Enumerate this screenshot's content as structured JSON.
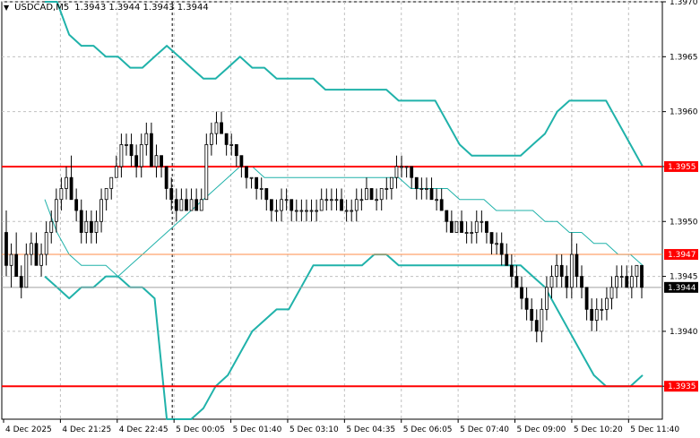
{
  "header": {
    "symbol": "USDCAD,M5",
    "ohlc": "1.3943 1.3944 1.3943 1.3944"
  },
  "colors": {
    "background": "#ffffff",
    "grid": "#c0c0c0",
    "candle": "#000000",
    "bands": "#20b2aa",
    "level_line": "#ff0000",
    "pivot_line": "#ff8c4a",
    "level_tag": "#ff0000",
    "current_tag": "#000000"
  },
  "icons": {
    "dropdown": "triangle-down-icon"
  },
  "chart_data": {
    "type": "candlestick",
    "price_scale": {
      "min": 1.3932,
      "max": 1.397,
      "ticks": [
        "1.3970",
        "1.3965",
        "1.3960",
        "1.3955",
        "1.3950",
        "1.3945",
        "1.3940",
        "1.3935"
      ]
    },
    "time_labels": [
      "4 Dec 2025",
      "4 Dec 21:25",
      "4 Dec 22:45",
      "5 Dec 00:05",
      "5 Dec 01:40",
      "5 Dec 03:10",
      "5 Dec 04:35",
      "5 Dec 06:05",
      "5 Dec 07:40",
      "5 Dec 09:00",
      "5 Dec 10:20",
      "5 Dec 11:40"
    ],
    "horizontal_levels": [
      {
        "price": 1.3955,
        "label": "1.3955",
        "kind": "resistance"
      },
      {
        "price": 1.3947,
        "label": "1.3947",
        "kind": "pivot"
      },
      {
        "price": 1.3935,
        "label": "1.3935",
        "kind": "support"
      }
    ],
    "current_price": {
      "price": 1.3944,
      "label": "1.3944"
    },
    "bars": [
      [
        1.3949,
        1.3951,
        1.3945,
        1.3946
      ],
      [
        1.3946,
        1.3948,
        1.3944,
        1.3947
      ],
      [
        1.3947,
        1.3949,
        1.3945,
        1.3945
      ],
      [
        1.3945,
        1.3946,
        1.3943,
        1.3944
      ],
      [
        1.3944,
        1.3948,
        1.3944,
        1.3947
      ],
      [
        1.3947,
        1.3949,
        1.3946,
        1.3948
      ],
      [
        1.3948,
        1.3949,
        1.3946,
        1.3946
      ],
      [
        1.3946,
        1.3948,
        1.3945,
        1.3947
      ],
      [
        1.3947,
        1.395,
        1.3946,
        1.3949
      ],
      [
        1.3949,
        1.3951,
        1.3948,
        1.395
      ],
      [
        1.395,
        1.3953,
        1.3949,
        1.3952
      ],
      [
        1.3952,
        1.3954,
        1.3951,
        1.3953
      ],
      [
        1.3953,
        1.3955,
        1.3952,
        1.3954
      ],
      [
        1.3954,
        1.3956,
        1.3953,
        1.3952
      ],
      [
        1.3952,
        1.3953,
        1.395,
        1.3951
      ],
      [
        1.3951,
        1.3952,
        1.3948,
        1.3949
      ],
      [
        1.3949,
        1.3951,
        1.3948,
        1.395
      ],
      [
        1.395,
        1.3951,
        1.3948,
        1.3949
      ],
      [
        1.3949,
        1.3951,
        1.3948,
        1.395
      ],
      [
        1.395,
        1.3953,
        1.3949,
        1.3952
      ],
      [
        1.3952,
        1.3953,
        1.3951,
        1.3953
      ],
      [
        1.3953,
        1.3954,
        1.3952,
        1.3954
      ],
      [
        1.3954,
        1.3956,
        1.3954,
        1.3955
      ],
      [
        1.3955,
        1.3958,
        1.3954,
        1.3957
      ],
      [
        1.3957,
        1.3958,
        1.3956,
        1.3957
      ],
      [
        1.3957,
        1.3958,
        1.3955,
        1.3956
      ],
      [
        1.3956,
        1.3957,
        1.3954,
        1.3955
      ],
      [
        1.3955,
        1.3958,
        1.3954,
        1.3957
      ],
      [
        1.3957,
        1.3959,
        1.3956,
        1.3958
      ],
      [
        1.3958,
        1.3959,
        1.3955,
        1.3955
      ],
      [
        1.3955,
        1.3957,
        1.3954,
        1.3956
      ],
      [
        1.3956,
        1.3956,
        1.3954,
        1.3955
      ],
      [
        1.3955,
        1.3955,
        1.3952,
        1.3953
      ],
      [
        1.3953,
        1.3954,
        1.3951,
        1.3952
      ],
      [
        1.3952,
        1.3953,
        1.395,
        1.3951
      ],
      [
        1.3951,
        1.3953,
        1.3951,
        1.3952
      ],
      [
        1.3952,
        1.3953,
        1.3951,
        1.3951
      ],
      [
        1.3951,
        1.3953,
        1.3951,
        1.3952
      ],
      [
        1.3952,
        1.3953,
        1.3951,
        1.3951
      ],
      [
        1.3951,
        1.3953,
        1.3951,
        1.3952
      ],
      [
        1.3952,
        1.3958,
        1.3952,
        1.3957
      ],
      [
        1.3957,
        1.3959,
        1.3956,
        1.3958
      ],
      [
        1.3958,
        1.396,
        1.3957,
        1.3959
      ],
      [
        1.3959,
        1.396,
        1.3958,
        1.3958
      ],
      [
        1.3958,
        1.3958,
        1.3956,
        1.3957
      ],
      [
        1.3957,
        1.3958,
        1.3956,
        1.3957
      ],
      [
        1.3957,
        1.3957,
        1.3955,
        1.3956
      ],
      [
        1.3956,
        1.3956,
        1.3954,
        1.3955
      ],
      [
        1.3955,
        1.3955,
        1.3953,
        1.3954
      ],
      [
        1.3954,
        1.3954,
        1.3953,
        1.3954
      ],
      [
        1.3954,
        1.3954,
        1.3952,
        1.3953
      ],
      [
        1.3953,
        1.3954,
        1.3952,
        1.3953
      ],
      [
        1.3953,
        1.3953,
        1.3951,
        1.3952
      ],
      [
        1.3952,
        1.3952,
        1.395,
        1.3951
      ],
      [
        1.3951,
        1.3952,
        1.395,
        1.3951
      ],
      [
        1.3951,
        1.3953,
        1.395,
        1.3952
      ],
      [
        1.3952,
        1.3953,
        1.3951,
        1.3952
      ],
      [
        1.3952,
        1.3952,
        1.395,
        1.3951
      ],
      [
        1.3951,
        1.3952,
        1.395,
        1.3951
      ],
      [
        1.3951,
        1.3952,
        1.395,
        1.3951
      ],
      [
        1.3951,
        1.3952,
        1.395,
        1.3951
      ],
      [
        1.3951,
        1.3952,
        1.395,
        1.3951
      ],
      [
        1.3951,
        1.3952,
        1.395,
        1.3951
      ],
      [
        1.3951,
        1.3953,
        1.3951,
        1.3952
      ],
      [
        1.3952,
        1.3953,
        1.3951,
        1.3952
      ],
      [
        1.3952,
        1.3953,
        1.3951,
        1.3952
      ],
      [
        1.3952,
        1.3953,
        1.3951,
        1.3952
      ],
      [
        1.3952,
        1.3953,
        1.3951,
        1.3951
      ],
      [
        1.3951,
        1.3952,
        1.395,
        1.3951
      ],
      [
        1.3951,
        1.3952,
        1.395,
        1.3951
      ],
      [
        1.3951,
        1.3953,
        1.395,
        1.3952
      ],
      [
        1.3952,
        1.3953,
        1.3951,
        1.3952
      ],
      [
        1.3952,
        1.3954,
        1.3952,
        1.3953
      ],
      [
        1.3953,
        1.3953,
        1.3952,
        1.3952
      ],
      [
        1.3952,
        1.3953,
        1.3951,
        1.3952
      ],
      [
        1.3952,
        1.3953,
        1.3951,
        1.3953
      ],
      [
        1.3953,
        1.3954,
        1.3952,
        1.3953
      ],
      [
        1.3953,
        1.3954,
        1.3952,
        1.3954
      ],
      [
        1.3954,
        1.3956,
        1.3953,
        1.3955
      ],
      [
        1.3955,
        1.3956,
        1.3954,
        1.3955
      ],
      [
        1.3955,
        1.3955,
        1.3954,
        1.3955
      ],
      [
        1.3955,
        1.3955,
        1.3953,
        1.3954
      ],
      [
        1.3954,
        1.3954,
        1.3952,
        1.3953
      ],
      [
        1.3953,
        1.3954,
        1.3952,
        1.3953
      ],
      [
        1.3953,
        1.3954,
        1.3952,
        1.3953
      ],
      [
        1.3953,
        1.3954,
        1.3952,
        1.3952
      ],
      [
        1.3952,
        1.3953,
        1.3951,
        1.3952
      ],
      [
        1.3952,
        1.3953,
        1.3951,
        1.3951
      ],
      [
        1.3951,
        1.3951,
        1.3949,
        1.395
      ],
      [
        1.395,
        1.3951,
        1.3949,
        1.3949
      ],
      [
        1.3949,
        1.395,
        1.3949,
        1.395
      ],
      [
        1.395,
        1.3951,
        1.3949,
        1.3949
      ],
      [
        1.3949,
        1.395,
        1.3948,
        1.3949
      ],
      [
        1.3949,
        1.395,
        1.3948,
        1.3949
      ],
      [
        1.3949,
        1.3951,
        1.3948,
        1.395
      ],
      [
        1.395,
        1.3951,
        1.3949,
        1.395
      ],
      [
        1.395,
        1.395,
        1.3948,
        1.3949
      ],
      [
        1.3949,
        1.3949,
        1.3947,
        1.3948
      ],
      [
        1.3948,
        1.3949,
        1.3947,
        1.3948
      ],
      [
        1.3948,
        1.3949,
        1.3946,
        1.3947
      ],
      [
        1.3947,
        1.3948,
        1.3946,
        1.3946
      ],
      [
        1.3946,
        1.3947,
        1.3944,
        1.3945
      ],
      [
        1.3945,
        1.3946,
        1.3944,
        1.3944
      ],
      [
        1.3944,
        1.3945,
        1.3942,
        1.3943
      ],
      [
        1.3943,
        1.3944,
        1.3941,
        1.3942
      ],
      [
        1.3942,
        1.3943,
        1.394,
        1.3941
      ],
      [
        1.3941,
        1.3942,
        1.3939,
        1.394
      ],
      [
        1.394,
        1.3943,
        1.3939,
        1.3942
      ],
      [
        1.3942,
        1.3945,
        1.3941,
        1.3944
      ],
      [
        1.3944,
        1.3946,
        1.3943,
        1.3945
      ],
      [
        1.3945,
        1.3947,
        1.3944,
        1.3946
      ],
      [
        1.3946,
        1.3947,
        1.3944,
        1.3945
      ],
      [
        1.3945,
        1.3946,
        1.3943,
        1.3944
      ],
      [
        1.3944,
        1.3949,
        1.3943,
        1.3947
      ],
      [
        1.3947,
        1.3948,
        1.3944,
        1.3945
      ],
      [
        1.3945,
        1.3946,
        1.3943,
        1.3944
      ],
      [
        1.3944,
        1.3944,
        1.3941,
        1.3942
      ],
      [
        1.3942,
        1.3943,
        1.394,
        1.3941
      ],
      [
        1.3941,
        1.3943,
        1.394,
        1.3942
      ],
      [
        1.3942,
        1.3943,
        1.3941,
        1.3942
      ],
      [
        1.3942,
        1.3944,
        1.3941,
        1.3943
      ],
      [
        1.3943,
        1.3945,
        1.3942,
        1.3944
      ],
      [
        1.3944,
        1.3946,
        1.3943,
        1.3945
      ],
      [
        1.3945,
        1.3946,
        1.3944,
        1.3945
      ],
      [
        1.3945,
        1.3946,
        1.3944,
        1.3944
      ],
      [
        1.3944,
        1.3946,
        1.3943,
        1.3945
      ],
      [
        1.3945,
        1.3946,
        1.3944,
        1.3946
      ],
      [
        1.3946,
        1.3946,
        1.3943,
        1.3944
      ]
    ],
    "band_upper": [
      1.3972,
      1.397,
      1.3967,
      1.3966,
      1.3966,
      1.3965,
      1.3965,
      1.3964,
      1.3964,
      1.3965,
      1.3966,
      1.3965,
      1.3964,
      1.3963,
      1.3963,
      1.3964,
      1.3965,
      1.3964,
      1.3964,
      1.3963,
      1.3963,
      1.3963,
      1.3963,
      1.3962,
      1.3962,
      1.3962,
      1.3962,
      1.3962,
      1.3962,
      1.3961,
      1.3961,
      1.3961,
      1.3961,
      1.3959,
      1.3957,
      1.3956,
      1.3956,
      1.3956,
      1.3956,
      1.3956,
      1.3957,
      1.3958,
      1.396,
      1.3961,
      1.3961,
      1.3961,
      1.3961,
      1.3959,
      1.3957,
      1.3955
    ],
    "band_middle": [
      1.3952,
      1.3949,
      1.3947,
      1.3946,
      1.3946,
      1.3946,
      1.3945,
      1.3946,
      1.3947,
      1.3948,
      1.3949,
      1.395,
      1.3951,
      1.3952,
      1.3953,
      1.3954,
      1.3955,
      1.3955,
      1.3954,
      1.3954,
      1.3954,
      1.3954,
      1.3954,
      1.3954,
      1.3954,
      1.3954,
      1.3954,
      1.3954,
      1.3954,
      1.3954,
      1.3953,
      1.3953,
      1.3953,
      1.3953,
      1.3952,
      1.3952,
      1.3952,
      1.3951,
      1.3951,
      1.3951,
      1.3951,
      1.395,
      1.395,
      1.3949,
      1.3949,
      1.3948,
      1.3948,
      1.3947,
      1.3947,
      1.3946
    ],
    "band_lower": [
      1.3945,
      1.3944,
      1.3943,
      1.3944,
      1.3944,
      1.3945,
      1.3945,
      1.3944,
      1.3944,
      1.3943,
      1.3932,
      1.3931,
      1.3932,
      1.3933,
      1.3935,
      1.3936,
      1.3938,
      1.394,
      1.3941,
      1.3942,
      1.3942,
      1.3944,
      1.3946,
      1.3946,
      1.3946,
      1.3946,
      1.3946,
      1.3947,
      1.3947,
      1.3946,
      1.3946,
      1.3946,
      1.3946,
      1.3946,
      1.3946,
      1.3946,
      1.3946,
      1.3946,
      1.3946,
      1.3946,
      1.3945,
      1.3944,
      1.3942,
      1.394,
      1.3938,
      1.3936,
      1.3935,
      1.3935,
      1.3935,
      1.3936
    ]
  }
}
